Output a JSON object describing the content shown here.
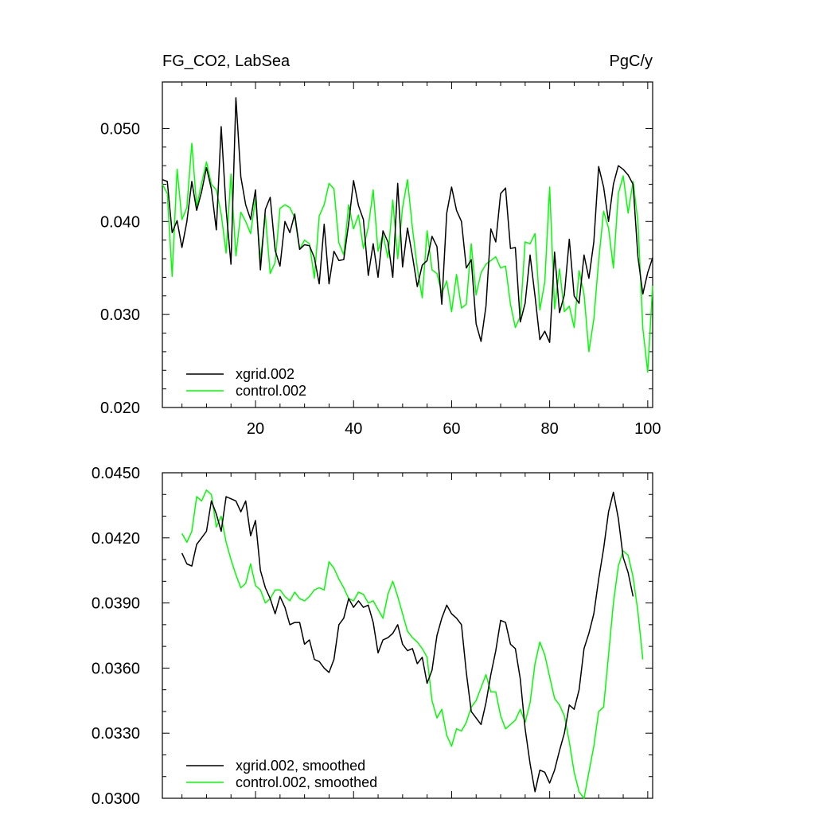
{
  "page": {
    "title_left": "FG_CO2, LabSea",
    "title_right": "PgC/y"
  },
  "chart_data": [
    {
      "type": "line",
      "xlim": [
        1,
        101
      ],
      "ylim": [
        0.02,
        0.055
      ],
      "x_ticks": [
        20,
        40,
        60,
        80,
        100
      ],
      "x_tick_labels": [
        "20",
        "40",
        "60",
        "80",
        "100"
      ],
      "y_ticks": [
        0.02,
        0.03,
        0.04,
        0.05
      ],
      "y_tick_labels": [
        "0.020",
        "0.030",
        "0.040",
        "0.050"
      ],
      "x_start": 1,
      "legend_position": "bottom-left",
      "series": [
        {
          "name": "xgrid.002",
          "color": "#000000",
          "values": [
            0.0445,
            0.0443,
            0.0388,
            0.0401,
            0.0372,
            0.04,
            0.0443,
            0.0412,
            0.0432,
            0.0458,
            0.0435,
            0.0391,
            0.0502,
            0.0413,
            0.0354,
            0.0533,
            0.0448,
            0.0418,
            0.0402,
            0.0434,
            0.0348,
            0.0413,
            0.0426,
            0.0369,
            0.0352,
            0.04,
            0.0388,
            0.0408,
            0.037,
            0.0375,
            0.0374,
            0.0361,
            0.0333,
            0.0397,
            0.0333,
            0.0368,
            0.0358,
            0.0359,
            0.0398,
            0.0444,
            0.0417,
            0.0402,
            0.0342,
            0.0376,
            0.034,
            0.039,
            0.0378,
            0.034,
            0.0441,
            0.0351,
            0.0393,
            0.0363,
            0.033,
            0.0353,
            0.0358,
            0.0384,
            0.0373,
            0.0311,
            0.0409,
            0.0437,
            0.0412,
            0.04,
            0.035,
            0.0359,
            0.029,
            0.0271,
            0.0309,
            0.0392,
            0.0378,
            0.043,
            0.0436,
            0.0371,
            0.0372,
            0.0292,
            0.0312,
            0.0364,
            0.032,
            0.0273,
            0.0282,
            0.027,
            0.0367,
            0.0302,
            0.0321,
            0.0381,
            0.032,
            0.0312,
            0.0364,
            0.0339,
            0.0378,
            0.0459,
            0.0437,
            0.04,
            0.044,
            0.046,
            0.0456,
            0.045,
            0.044,
            0.0362,
            0.0322,
            0.0345,
            0.0361
          ]
        },
        {
          "name": "control.002",
          "color": "#00ff00",
          "values": [
            0.044,
            0.043,
            0.0341,
            0.0456,
            0.0402,
            0.0415,
            0.0484,
            0.0416,
            0.0441,
            0.0464,
            0.044,
            0.0434,
            0.0408,
            0.0366,
            0.0451,
            0.0363,
            0.041,
            0.04,
            0.0387,
            0.0425,
            0.0358,
            0.0407,
            0.0344,
            0.0356,
            0.0414,
            0.0418,
            0.0415,
            0.0404,
            0.037,
            0.038,
            0.0376,
            0.0339,
            0.0406,
            0.0418,
            0.0441,
            0.0435,
            0.0377,
            0.0364,
            0.0418,
            0.0392,
            0.0407,
            0.0371,
            0.0394,
            0.0434,
            0.0368,
            0.0386,
            0.0361,
            0.0423,
            0.036,
            0.0415,
            0.0445,
            0.0393,
            0.035,
            0.0318,
            0.039,
            0.0348,
            0.0344,
            0.0323,
            0.0336,
            0.0303,
            0.0343,
            0.0307,
            0.0311,
            0.0376,
            0.0321,
            0.0345,
            0.0354,
            0.0358,
            0.0362,
            0.035,
            0.0352,
            0.0311,
            0.0286,
            0.0298,
            0.0378,
            0.0376,
            0.0387,
            0.0305,
            0.0335,
            0.0437,
            0.0306,
            0.0349,
            0.0303,
            0.0309,
            0.0286,
            0.0347,
            0.0322,
            0.026,
            0.0295,
            0.0358,
            0.0411,
            0.0393,
            0.035,
            0.043,
            0.0449,
            0.0409,
            0.0443,
            0.04,
            0.0285,
            0.0238,
            0.0331
          ]
        }
      ]
    },
    {
      "type": "line",
      "xlim": [
        1,
        101
      ],
      "ylim": [
        0.03,
        0.045
      ],
      "x_ticks": [
        20,
        40,
        60,
        80,
        100
      ],
      "x_tick_labels": [],
      "y_ticks": [
        0.03,
        0.033,
        0.036,
        0.039,
        0.042,
        0.045
      ],
      "y_tick_labels": [
        "0.0300",
        "0.0330",
        "0.0360",
        "0.0390",
        "0.0420",
        "0.0450"
      ],
      "x_start": 5,
      "legend_position": "bottom-left",
      "series": [
        {
          "name": "xgrid.002, smoothed",
          "color": "#000000",
          "values": [
            0.0413,
            0.0408,
            0.0407,
            0.0417,
            0.042,
            0.0423,
            0.0437,
            0.0431,
            0.0423,
            0.0439,
            0.0438,
            0.0437,
            0.0432,
            0.0437,
            0.0421,
            0.0428,
            0.0405,
            0.0397,
            0.0392,
            0.0385,
            0.0393,
            0.0388,
            0.038,
            0.0381,
            0.0381,
            0.0371,
            0.0373,
            0.0364,
            0.0363,
            0.036,
            0.0358,
            0.0364,
            0.038,
            0.0383,
            0.0392,
            0.0388,
            0.0391,
            0.0388,
            0.0389,
            0.0381,
            0.0367,
            0.0373,
            0.0374,
            0.0376,
            0.038,
            0.0371,
            0.0368,
            0.0369,
            0.0362,
            0.0365,
            0.0353,
            0.0359,
            0.0375,
            0.0383,
            0.0389,
            0.0385,
            0.0383,
            0.038,
            0.0358,
            0.034,
            0.0337,
            0.0334,
            0.0344,
            0.0357,
            0.0368,
            0.0382,
            0.0381,
            0.0371,
            0.0369,
            0.0355,
            0.0332,
            0.0316,
            0.0303,
            0.0313,
            0.0312,
            0.0307,
            0.0313,
            0.0322,
            0.033,
            0.0343,
            0.0341,
            0.035,
            0.0369,
            0.0376,
            0.0385,
            0.0401,
            0.0415,
            0.0432,
            0.0441,
            0.0429,
            0.0411,
            0.0404,
            0.0393
          ]
        },
        {
          "name": "control.002, smoothed",
          "color": "#00ff00",
          "values": [
            0.0422,
            0.0418,
            0.0423,
            0.0439,
            0.0437,
            0.0442,
            0.044,
            0.0425,
            0.043,
            0.0418,
            0.041,
            0.0403,
            0.0397,
            0.0399,
            0.0408,
            0.0398,
            0.0396,
            0.039,
            0.0392,
            0.0396,
            0.0396,
            0.0393,
            0.0391,
            0.0395,
            0.0392,
            0.0391,
            0.0393,
            0.0396,
            0.0397,
            0.0396,
            0.0409,
            0.0406,
            0.0401,
            0.0397,
            0.0392,
            0.0391,
            0.0395,
            0.0394,
            0.039,
            0.0391,
            0.0387,
            0.0383,
            0.0394,
            0.04,
            0.0393,
            0.0385,
            0.0377,
            0.0374,
            0.0372,
            0.0369,
            0.0365,
            0.0345,
            0.0337,
            0.0341,
            0.0329,
            0.0324,
            0.0332,
            0.0331,
            0.0335,
            0.0342,
            0.0345,
            0.0351,
            0.0357,
            0.0349,
            0.0349,
            0.0338,
            0.0332,
            0.0334,
            0.0336,
            0.0341,
            0.0335,
            0.0344,
            0.0362,
            0.0372,
            0.0366,
            0.0356,
            0.0346,
            0.0343,
            0.0338,
            0.0326,
            0.0312,
            0.0303,
            0.03,
            0.0312,
            0.0324,
            0.034,
            0.0342,
            0.0366,
            0.039,
            0.0407,
            0.0414,
            0.0412,
            0.0402,
            0.0386,
            0.0364
          ]
        }
      ]
    }
  ]
}
